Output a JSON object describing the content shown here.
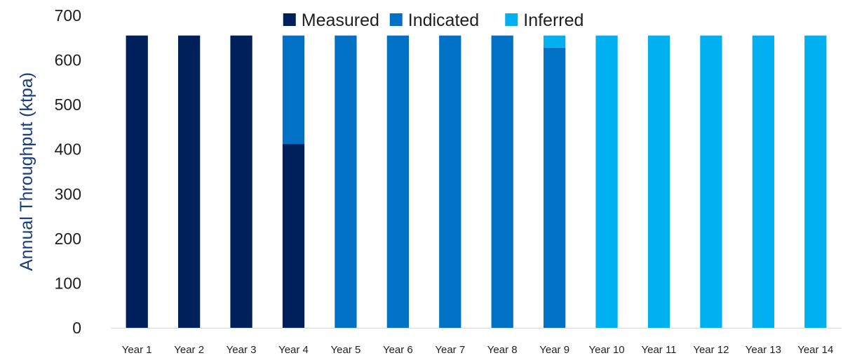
{
  "chart_data": {
    "type": "bar",
    "stacked": true,
    "title": "",
    "xlabel": "",
    "ylabel": "Annual Throughput (ktpa)",
    "ylim": [
      0,
      700
    ],
    "yticks": [
      0,
      100,
      200,
      300,
      400,
      500,
      600,
      700
    ],
    "grid": false,
    "legend_position": "top",
    "categories": [
      "Year 1",
      "Year 2",
      "Year 3",
      "Year 4",
      "Year 5",
      "Year 6",
      "Year 7",
      "Year 8",
      "Year 9",
      "Year 10",
      "Year 11",
      "Year 12",
      "Year 13",
      "Year 14"
    ],
    "series": [
      {
        "name": "Measured",
        "color": "#00205b",
        "values": [
          655,
          655,
          655,
          412,
          0,
          0,
          0,
          0,
          0,
          0,
          0,
          0,
          0,
          0
        ]
      },
      {
        "name": "Indicated",
        "color": "#0071c5",
        "values": [
          0,
          0,
          0,
          243,
          655,
          655,
          655,
          655,
          628,
          0,
          0,
          0,
          0,
          0
        ]
      },
      {
        "name": "Inferred",
        "color": "#00b0f0",
        "values": [
          0,
          0,
          0,
          0,
          0,
          0,
          0,
          0,
          27,
          655,
          655,
          655,
          655,
          655
        ]
      }
    ]
  }
}
